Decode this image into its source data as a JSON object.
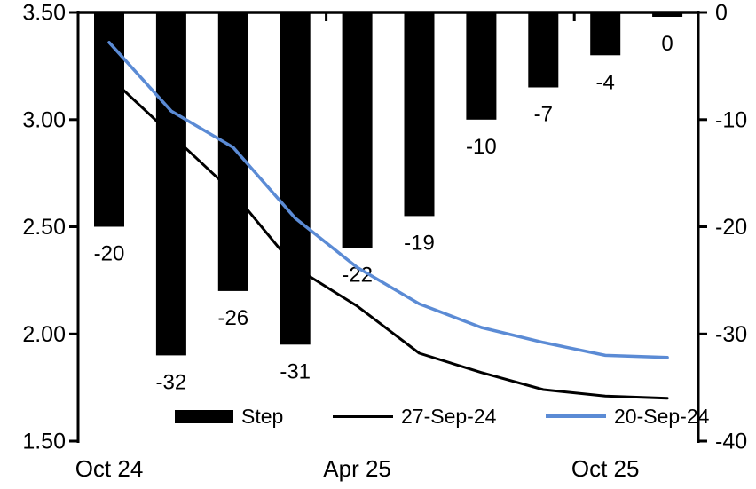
{
  "chart_data": {
    "type": "combo-bar-line-dual-axis",
    "title": "",
    "background": "#ffffff",
    "n_categories": 10,
    "x_ticks": [
      {
        "index": 0,
        "label": "Oct 24"
      },
      {
        "index": 4,
        "label": "Apr 25"
      },
      {
        "index": 8,
        "label": "Oct 25"
      }
    ],
    "left_axis": {
      "min": 1.5,
      "max": 3.5,
      "tick_labels": [
        "3.50",
        "3.00",
        "2.50",
        "2.00",
        "1.50"
      ]
    },
    "right_axis": {
      "min": -40,
      "max": 0,
      "tick_labels": [
        "0",
        "-10",
        "-20",
        "-30",
        "-40"
      ]
    },
    "grid": "off",
    "series": {
      "bars": {
        "name": "Step",
        "axis": "right",
        "color": "#000000",
        "values": [
          -20,
          -32,
          -26,
          -31,
          -22,
          -19,
          -10,
          -7,
          -4,
          0
        ],
        "data_labels": [
          "-20",
          "-32",
          "-26",
          "-31",
          "-22",
          "-19",
          "-10",
          "-7",
          "-4",
          "0"
        ]
      },
      "lines": [
        {
          "name": "27-Sep-24",
          "axis": "left",
          "color": "#000000",
          "width": 3,
          "values": [
            3.2,
            2.93,
            2.66,
            2.31,
            2.13,
            1.91,
            1.82,
            1.74,
            1.71,
            1.7
          ]
        },
        {
          "name": "20-Sep-24",
          "axis": "left",
          "color": "#5B8BD5",
          "width": 3.5,
          "values": [
            3.36,
            3.04,
            2.87,
            2.54,
            2.31,
            2.14,
            2.03,
            1.96,
            1.9,
            1.89
          ]
        }
      ]
    },
    "legend": {
      "position": "bottom-inside",
      "items": [
        {
          "label": "Step",
          "type": "bar",
          "color": "#000000"
        },
        {
          "label": "27-Sep-24",
          "type": "line",
          "color": "#000000"
        },
        {
          "label": "20-Sep-24",
          "type": "line",
          "color": "#5B8BD5"
        }
      ]
    }
  }
}
